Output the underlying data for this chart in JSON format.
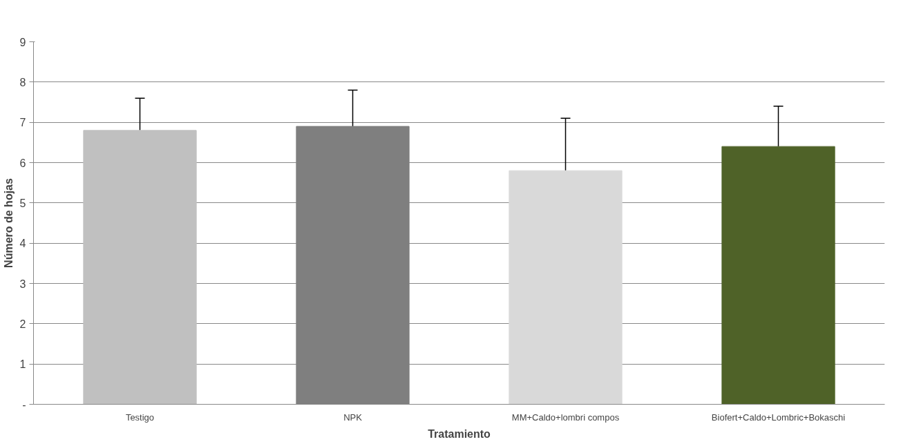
{
  "chart_data": {
    "type": "bar",
    "xlabel": "Tratamiento",
    "ylabel": "Número de hojas",
    "categories": [
      "Testigo",
      "NPK",
      "MM+Caldo+lombri compos",
      "Biofert+Caldo+Lombric+Bokaschi"
    ],
    "values": [
      6.8,
      6.9,
      5.8,
      6.4
    ],
    "errors": [
      [
        6.8,
        7.6
      ],
      [
        6.9,
        7.8
      ],
      [
        5.8,
        7.1
      ],
      [
        6.4,
        7.4
      ]
    ],
    "colors": [
      "#c0c0c0",
      "#7f7f7f",
      "#d9d9d9",
      "#4f6228"
    ],
    "ylim": [
      0,
      9
    ],
    "yticks": [
      {
        "value": 0,
        "label": "-"
      },
      1,
      2,
      3,
      4,
      5,
      6,
      7,
      8,
      9
    ],
    "grid": "y"
  }
}
